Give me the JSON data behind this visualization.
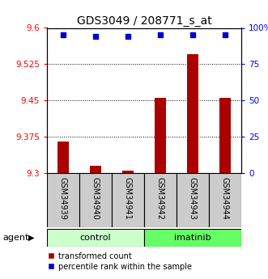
{
  "title": "GDS3049 / 208771_s_at",
  "samples": [
    "GSM34939",
    "GSM34940",
    "GSM34941",
    "GSM34942",
    "GSM34943",
    "GSM34944"
  ],
  "groups": [
    "control",
    "control",
    "control",
    "imatinib",
    "imatinib",
    "imatinib"
  ],
  "transformed_counts": [
    9.365,
    9.315,
    9.305,
    9.455,
    9.545,
    9.455
  ],
  "percentile_ranks": [
    95,
    94,
    94,
    95,
    95,
    95
  ],
  "ylim_left": [
    9.3,
    9.6
  ],
  "ylim_right": [
    0,
    100
  ],
  "yticks_left": [
    9.3,
    9.375,
    9.45,
    9.525,
    9.6
  ],
  "yticks_right": [
    0,
    25,
    50,
    75,
    100
  ],
  "ytick_labels_left": [
    "9.3",
    "9.375",
    "9.45",
    "9.525",
    "9.6"
  ],
  "ytick_labels_right": [
    "0",
    "25",
    "50",
    "75",
    "100%"
  ],
  "bar_color": "#aa0000",
  "dot_color": "#0000cc",
  "control_color": "#ccffcc",
  "imatinib_color": "#66ff66",
  "sample_box_color": "#cccccc",
  "legend_red_label": "transformed count",
  "legend_blue_label": "percentile rank within the sample",
  "agent_label": "agent"
}
